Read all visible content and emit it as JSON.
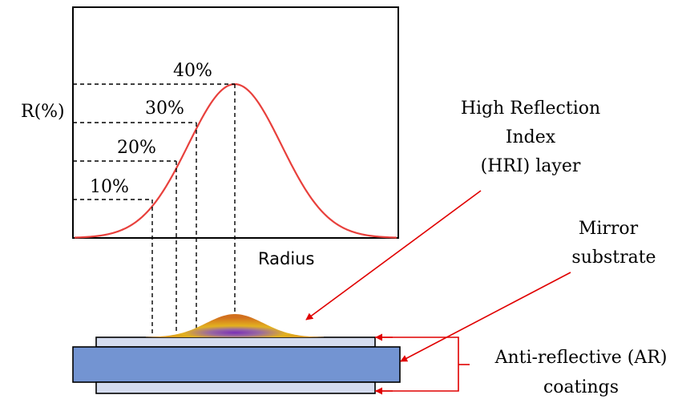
{
  "graph": {
    "y_label": "R(%)",
    "x_label": "Radius",
    "levels": [
      {
        "label": "10%",
        "value": 10
      },
      {
        "label": "20%",
        "value": 20
      },
      {
        "label": "30%",
        "value": 30
      },
      {
        "label": "40%",
        "value": 40
      }
    ]
  },
  "labels": {
    "hri_line1": "High Reflection",
    "hri_line2": "Index",
    "hri_line3": "(HRI) layer",
    "mirror_line1": "Mirror",
    "mirror_line2": "substrate",
    "ar_line1": "Anti-reflective (AR)",
    "ar_line2": "coatings"
  },
  "colors": {
    "curve": "#e8403c",
    "arrow": "#e00000",
    "coating_fill": "#d4dcef",
    "substrate_fill": "#7394d2",
    "hri_center": "#7a2fb8",
    "hri_mid": "#e3b21f",
    "hri_edge": "#d2701e"
  }
}
